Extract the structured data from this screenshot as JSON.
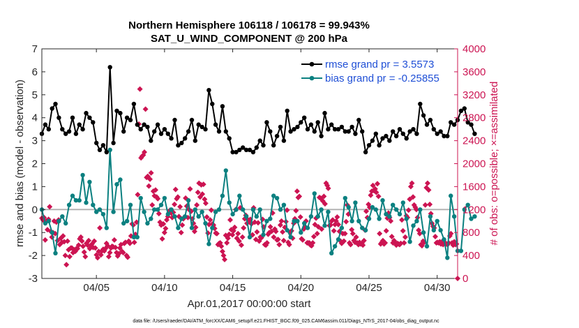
{
  "chart_data": {
    "type": "line",
    "title_line1": "Northern Hemisphere 106118 / 106178 = 99.943%",
    "title_line2": "SAT_U_WIND_COMPONENT @ 200 hPa",
    "xlabel": "Apr.01,2017 00:00:00 start",
    "ylabel": "rmse and bias (model - observation)",
    "ylabel_right": "# of obs: o=possible; ×=assimilated",
    "footer": "data file: /Users/raeder/DAI/ATM_forcXX/CAM6_setup/f.e21.FHIST_BGC.f09_025.CAM6assim.011/Diags_NTrS_2017-04/obs_diag_output.nc",
    "xlim": [
      1,
      31.5
    ],
    "ylim": [
      -3,
      7
    ],
    "ylim_right": [
      0,
      4000
    ],
    "x_ticks": [
      5,
      10,
      15,
      20,
      25,
      30
    ],
    "x_tick_labels": [
      "04/05",
      "04/10",
      "04/15",
      "04/20",
      "04/25",
      "04/30"
    ],
    "y_ticks": [
      -3,
      -2,
      -1,
      0,
      1,
      2,
      3,
      4,
      5,
      6,
      7
    ],
    "y_tick_labels": [
      "-3",
      "-2",
      "-1",
      "0",
      "1",
      "2",
      "3",
      "4",
      "5",
      "6",
      "7"
    ],
    "y_ticks_right": [
      0,
      400,
      800,
      1200,
      1600,
      2000,
      2400,
      2800,
      3200,
      3600,
      4000
    ],
    "y_tick_labels_right": [
      "0",
      "400",
      "800",
      "1200",
      "1600",
      "2000",
      "2400",
      "2800",
      "3200",
      "3600",
      "4000"
    ],
    "x_start": 1.0,
    "x_step": 0.25,
    "series": [
      {
        "name": "rmse grand pr = 3.5573",
        "axis": "left",
        "color": "#000000",
        "values": [
          3.3,
          3.7,
          3.5,
          4.4,
          4.6,
          4.0,
          3.5,
          3.3,
          3.4,
          4.0,
          3.3,
          3.7,
          3.5,
          4.2,
          4.0,
          3.8,
          2.9,
          2.6,
          2.8,
          2.5,
          6.2,
          2.9,
          4.3,
          4.2,
          3.4,
          4.0,
          3.9,
          4.6,
          3.7,
          3.5,
          3.7,
          3.6,
          3.0,
          3.4,
          3.7,
          3.3,
          3.5,
          3.3,
          3.1,
          3.9,
          2.8,
          2.9,
          3.1,
          3.4,
          3.9,
          3.0,
          3.7,
          3.6,
          3.5,
          5.2,
          4.6,
          3.7,
          3.4,
          4.5,
          3.4,
          3.1,
          2.5,
          2.5,
          2.6,
          2.7,
          2.6,
          2.6,
          2.5,
          2.7,
          3.0,
          2.8,
          3.8,
          3.4,
          2.8,
          3.2,
          3.6,
          3.0,
          4.3,
          3.4,
          3.5,
          3.6,
          3.8,
          4.0,
          3.5,
          3.7,
          3.4,
          3.8,
          3.2,
          4.2,
          3.5,
          3.7,
          3.5,
          3.5,
          3.6,
          3.4,
          3.4,
          3.6,
          3.3,
          3.9,
          3.4,
          2.5,
          2.8,
          3.0,
          3.3,
          2.8,
          3.1,
          3.2,
          3.0,
          3.4,
          3.2,
          3.5,
          3.3,
          3.1,
          3.4,
          3.5,
          3.3,
          4.6,
          4.1,
          3.7,
          3.9,
          3.5,
          3.3,
          3.4,
          3.2,
          3.2,
          3.8,
          3.7,
          3.9,
          4.3,
          4.4,
          3.8,
          3.7,
          3.3
        ],
        "values_note": "rmse, one point every 6 hours"
      },
      {
        "name": "bias grand pr = -0.25855",
        "axis": "left",
        "color": "#0b8080",
        "values": [
          0.0,
          -0.6,
          -0.5,
          -1.0,
          -1.9,
          -0.5,
          -0.3,
          -0.6,
          0.2,
          0.6,
          0.4,
          0.4,
          1.5,
          0.3,
          1.2,
          0.2,
          -0.1,
          0.0,
          -0.2,
          -0.8,
          2.6,
          -0.1,
          1.1,
          1.3,
          -0.6,
          -0.5,
          0.2,
          -1.2,
          -1.2,
          0.5,
          -0.1,
          -0.6,
          -0.4,
          0.0,
          0.0,
          0.2,
          0.5,
          -0.2,
          0.0,
          -0.3,
          -0.8,
          -0.4,
          -0.3,
          0.4,
          -0.8,
          0.0,
          -0.3,
          -0.1,
          -0.6,
          -1.5,
          -0.8,
          -0.1,
          0.0,
          0.6,
          1.7,
          0.3,
          -0.2,
          0.0,
          0.6,
          0.0,
          -0.3,
          -1.2,
          0.0,
          -0.3,
          0.0,
          -1.1,
          -0.5,
          -0.4,
          0.6,
          0.5,
          0.0,
          0.2,
          -0.9,
          -1.2,
          -0.5,
          -0.5,
          -1.0,
          -0.6,
          -0.8,
          -0.3,
          0.7,
          -0.3,
          0.0,
          -0.7,
          -0.1,
          -1.9,
          -1.6,
          -1.3,
          -0.8,
          0.5,
          0.1,
          -0.5,
          0.3,
          -0.5,
          -0.8,
          -0.9,
          -0.4,
          0.1,
          0.0,
          -0.4,
          0.4,
          -0.2,
          -0.3,
          0.2,
          0.0,
          -0.2,
          0.3,
          -0.4,
          -1.4,
          -0.7,
          -0.5,
          0.0,
          -1.0,
          -1.6,
          -0.3,
          -0.9,
          -0.5,
          -0.9,
          -1.3,
          -2.1,
          0.6,
          -0.3,
          -1.8,
          -1.8,
          0.0,
          0.2,
          -0.4,
          -0.3
        ],
        "values_note": "bias, one point every 6 hours"
      },
      {
        "name": "# assimilated",
        "axis": "right",
        "color": "#cc1452",
        "marker": "x",
        "values": [
          1050,
          1020,
          1060,
          670,
          1000,
          850,
          1030,
          1250,
          820,
          720,
          800,
          1000,
          780,
          980,
          660,
          1020,
          590,
          700,
          630,
          740,
          640,
          400,
          240,
          650,
          500,
          380,
          530,
          530,
          450,
          500,
          470,
          520,
          520,
          580,
          690,
          720,
          650,
          560,
          460,
          380,
          610,
          580,
          660,
          520,
          570,
          600,
          540,
          650,
          530,
          410,
          360,
          470,
          880,
          410,
          480,
          510,
          480,
          520,
          610,
          570,
          380,
          450,
          530,
          560,
          550,
          670,
          540,
          450,
          390,
          430,
          530,
          590,
          470,
          450,
          610,
          630,
          400,
          370,
          650,
          610,
          740,
          950,
          930,
          630,
          770,
          980,
          1460,
          2690,
          3300,
          2100,
          2130,
          2150,
          2200,
          2950,
          1760,
          1780,
          1610,
          1730,
          1840,
          1280,
          1520,
          1440,
          1540,
          1420,
          1390,
          1130,
          980,
          930,
          690,
          950,
          800,
          870,
          1020,
          1080,
          1140,
          1190,
          1140,
          1060,
          1150,
          1290,
          1550,
          1390,
          1420,
          1080,
          1250,
          800,
          930,
          1040,
          1070,
          1400,
          1260,
          1060,
          1200,
          1560,
          1170,
          1040,
          960,
          820,
          890,
          1280,
          1500,
          1660,
          1420,
          1630,
          1470,
          1640,
          1380,
          1310,
          1070,
          790,
          940,
          1020,
          1190,
          950,
          930,
          870,
          790,
          780,
          590,
          610,
          620,
          560,
          470,
          400,
          330,
          750,
          620,
          700,
          770,
          1020,
          850,
          760,
          830,
          890,
          1200,
          700,
          780,
          650,
          1230,
          580,
          720,
          880,
          1040,
          1100,
          960,
          1020,
          1000,
          1030,
          950,
          760,
          1230,
          980,
          680,
          810,
          970,
          650,
          720,
          710,
          1030,
          900,
          590,
          580,
          620,
          770,
          800,
          900,
          820,
          1140,
          720,
          860,
          820,
          670,
          680,
          590,
          930,
          1000,
          810,
          660,
          890,
          990,
          1190,
          630,
          590,
          810,
          830,
          700,
          960,
          1040,
          1180,
          1520,
          1410,
          1430,
          1070,
          690,
          670,
          860,
          890,
          1000,
          620,
          620,
          620,
          580,
          570,
          620,
          730,
          940,
          1050,
          780,
          900,
          1410,
          1400,
          860,
          1350,
          1430,
          1300,
          1660,
          1620,
          1570,
          920,
          930,
          1000,
          1020,
          830,
          940,
          1000,
          1070,
          940,
          820,
          650,
          610,
          780,
          650,
          780,
          990,
          1280,
          1120,
          620,
          590,
          850,
          780,
          660,
          630,
          720,
          620,
          590,
          630,
          600,
          610,
          580,
          660,
          840,
          1170,
          1060,
          1290,
          1240,
          1450,
          1520,
          1620,
          1530,
          1560,
          1500,
          1650,
          1430,
          780,
          600,
          630,
          660,
          600,
          620,
          830,
          1050,
          1140,
          1060,
          1000,
          730,
          620,
          660,
          630,
          580,
          610,
          600,
          590,
          610,
          1020,
          830,
          620,
          720,
          1090,
          1060,
          1190,
          1380,
          1600,
          1660,
          1420,
          1280,
          1240,
          1200,
          1060,
          840,
          780,
          590,
          570,
          650,
          630,
          1280,
          1580,
          1660,
          1540,
          1290,
          1130,
          960,
          910,
          880,
          730,
          620,
          630,
          620,
          640,
          600,
          640,
          590,
          620,
          620,
          600,
          590,
          620,
          740,
          780,
          620,
          580,
          640,
          590,
          600,
          0
        ],
        "values_note": "assimilated observation counts (scattered markers)"
      }
    ],
    "legend_position": "top-right"
  }
}
